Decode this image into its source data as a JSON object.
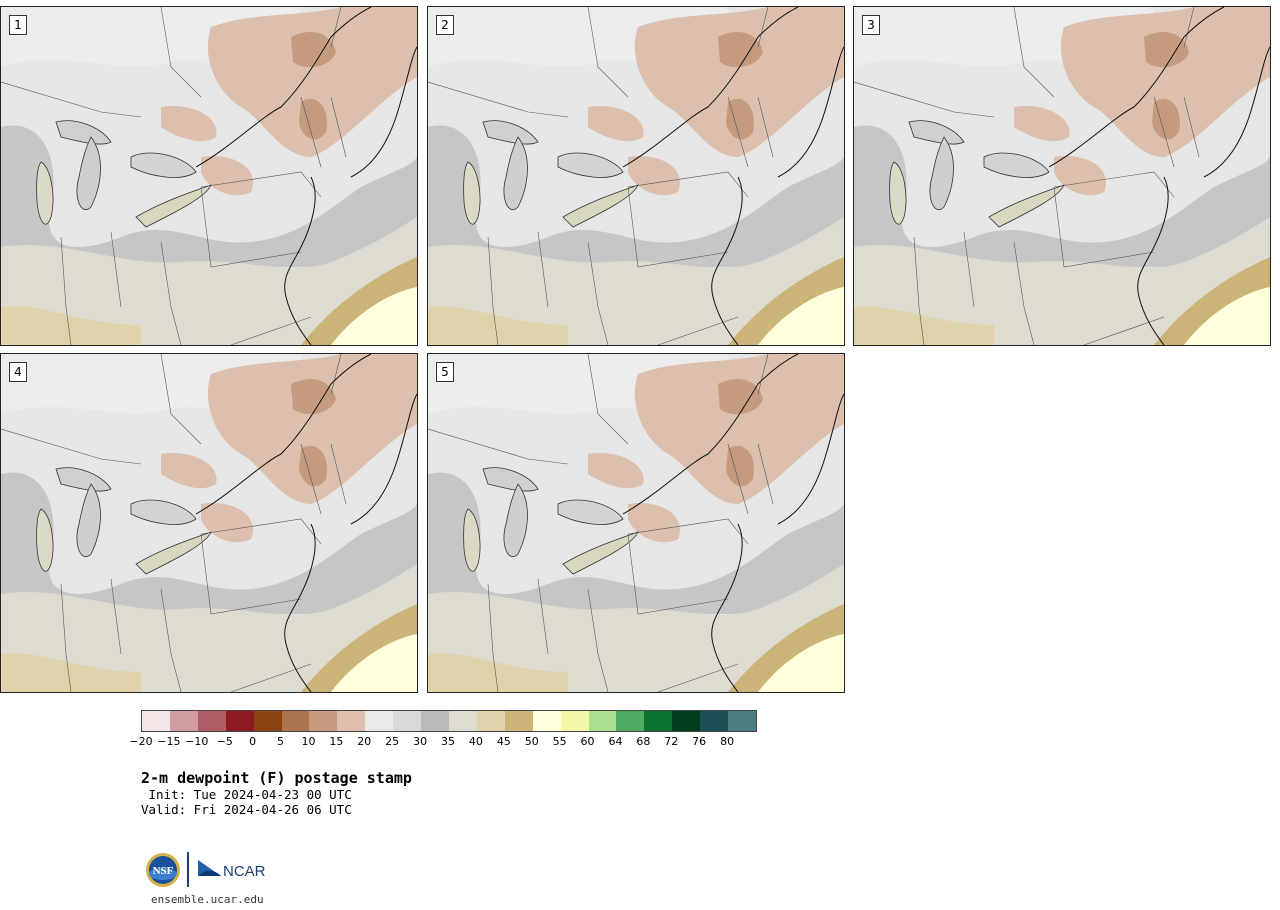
{
  "panels": [
    {
      "label": "1"
    },
    {
      "label": "2"
    },
    {
      "label": "3"
    },
    {
      "label": "4"
    },
    {
      "label": "5"
    }
  ],
  "colorbar": {
    "colors": [
      "#f3e6e6",
      "#d09ca0",
      "#ad5d63",
      "#8b1a22",
      "#8b4210",
      "#ad7450",
      "#c59b80",
      "#dcbfad",
      "#e9e9e9",
      "#d9d9d9",
      "#bababa",
      "#dedcd0",
      "#e0d2aa",
      "#cbb478",
      "#ffffdd",
      "#f5f8ab",
      "#a9df8f",
      "#4dac60",
      "#0b7332",
      "#003e20",
      "#1a5054",
      "#4c7f82"
    ],
    "ticks": [
      "−20",
      "−15",
      "−10",
      "−5",
      "0",
      "5",
      "10",
      "15",
      "20",
      "25",
      "30",
      "35",
      "40",
      "45",
      "50",
      "55",
      "60",
      "64",
      "68",
      "72",
      "76",
      "80"
    ]
  },
  "map_colors": {
    "light_gray": "#e8e8e8",
    "mid_gray": "#d6d6d6",
    "dark_gray": "#bcbcbc",
    "tan_light": "#dedcd0",
    "tan": "#e0d2aa",
    "tan_dark": "#cbb478",
    "cream": "#ffffdd",
    "brown_light": "#dcbfad",
    "brown": "#c59b80",
    "brown_dark": "#ad7450"
  },
  "title": "2-m dewpoint (F) postage stamp",
  "init_line": " Init: Tue 2024-04-23 00 UTC",
  "valid_line": "Valid: Fri 2024-04-26 06 UTC",
  "logos": {
    "nsf": "NSF",
    "ncar": "NCAR"
  },
  "footer": "ensemble.ucar.edu"
}
